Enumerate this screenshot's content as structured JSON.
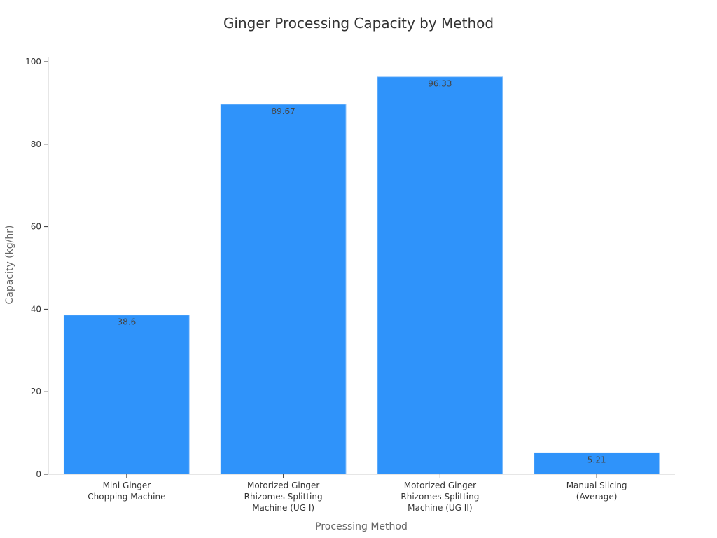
{
  "chart_data": {
    "type": "bar",
    "title": "Ginger Processing Capacity by Method",
    "xlabel": "Processing Method",
    "ylabel": "Capacity (kg/hr)",
    "categories": [
      [
        "Mini Ginger",
        "Chopping Machine"
      ],
      [
        "Motorized Ginger",
        "Rhizomes Splitting",
        "Machine (UG I)"
      ],
      [
        "Motorized Ginger",
        "Rhizomes Splitting",
        "Machine (UG II)"
      ],
      [
        "Manual Slicing",
        "(Average)"
      ]
    ],
    "values": [
      38.6,
      89.67,
      96.33,
      5.21
    ],
    "value_labels": [
      "38.6",
      "89.67",
      "96.33",
      "5.21"
    ],
    "ylim": [
      0,
      100
    ],
    "yticks": [
      0,
      20,
      40,
      60,
      80,
      100
    ],
    "grid": false,
    "legend": "none",
    "colors": {
      "bar": "#2f93fa",
      "bar_edge": "#a9d1fb",
      "axis": "#cccccc",
      "tick": "#333333"
    }
  }
}
